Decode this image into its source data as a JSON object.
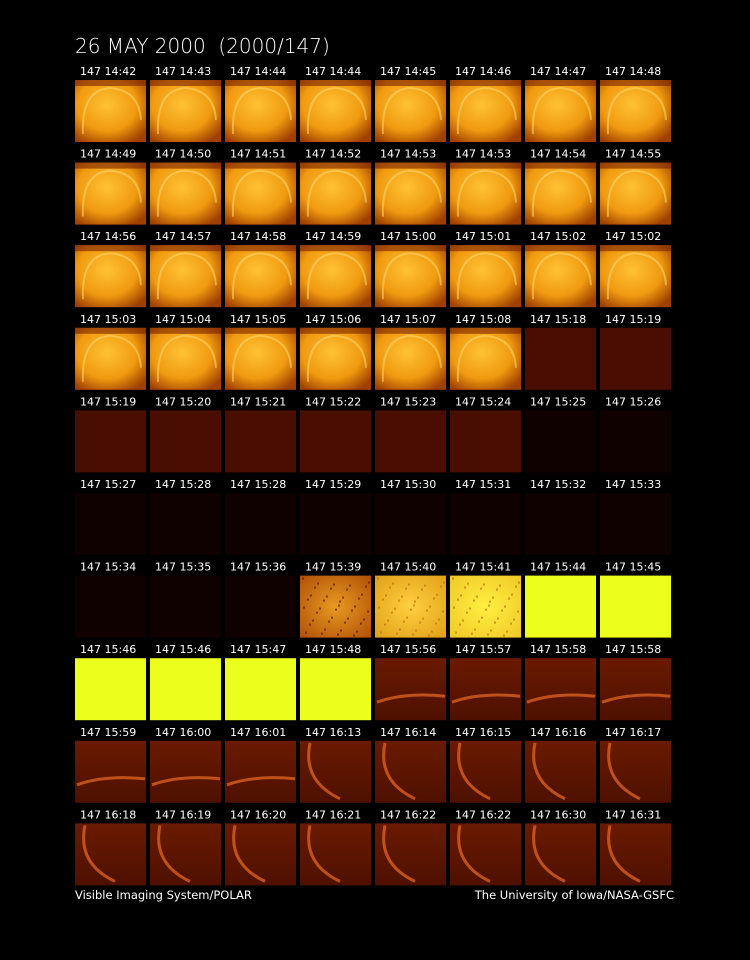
{
  "header": {
    "title": "26 MAY 2000  (2000/147)"
  },
  "frames": [
    "147 14:42",
    "147 14:43",
    "147 14:44",
    "147 14:44",
    "147 14:45",
    "147 14:46",
    "147 14:47",
    "147 14:48",
    "147 14:49",
    "147 14:50",
    "147 14:51",
    "147 14:52",
    "147 14:53",
    "147 14:53",
    "147 14:54",
    "147 14:55",
    "147 14:56",
    "147 14:57",
    "147 14:58",
    "147 14:59",
    "147 15:00",
    "147 15:01",
    "147 15:02",
    "147 15:02",
    "147 15:03",
    "147 15:04",
    "147 15:05",
    "147 15:06",
    "147 15:07",
    "147 15:08",
    "147 15:18",
    "147 15:19",
    "147 15:19",
    "147 15:20",
    "147 15:21",
    "147 15:22",
    "147 15:23",
    "147 15:24",
    "147 15:25",
    "147 15:26",
    "147 15:27",
    "147 15:28",
    "147 15:28",
    "147 15:29",
    "147 15:30",
    "147 15:31",
    "147 15:32",
    "147 15:33",
    "147 15:34",
    "147 15:35",
    "147 15:36",
    "147 15:39",
    "147 15:40",
    "147 15:41",
    "147 15:44",
    "147 15:45",
    "147 15:46",
    "147 15:46",
    "147 15:47",
    "147 15:48",
    "147 15:56",
    "147 15:57",
    "147 15:58",
    "147 15:58",
    "147 15:59",
    "147 16:00",
    "147 16:01",
    "147 16:13",
    "147 16:14",
    "147 16:15",
    "147 16:16",
    "147 16:17",
    "147 16:18",
    "147 16:19",
    "147 16:20",
    "147 16:21",
    "147 16:22",
    "147 16:22",
    "147 16:30",
    "147 16:31"
  ],
  "footer": {
    "left": "Visible Imaging System/POLAR",
    "right": "The University of Iowa/NASA-GSFC"
  }
}
